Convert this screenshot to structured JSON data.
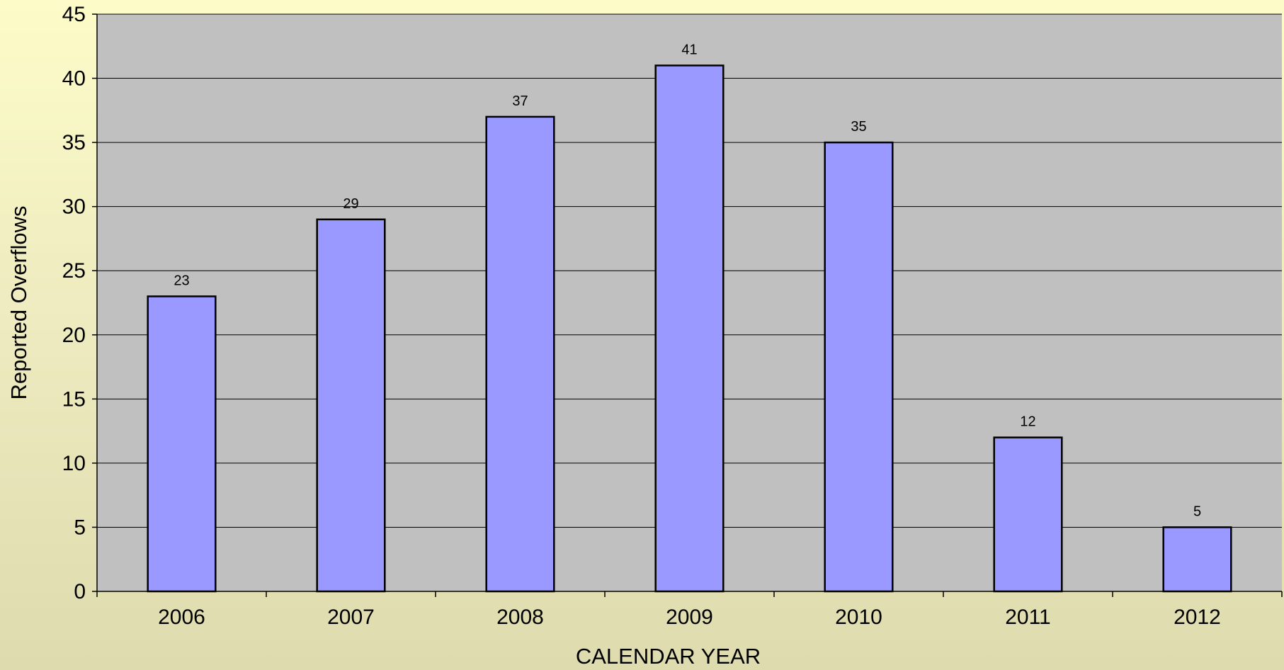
{
  "chart_data": {
    "type": "bar",
    "title": "",
    "xlabel": "CALENDAR YEAR",
    "ylabel": "Reported Overflows",
    "categories": [
      "2006",
      "2007",
      "2008",
      "2009",
      "2010",
      "2011",
      "2012"
    ],
    "values": [
      23,
      29,
      37,
      41,
      35,
      12,
      5
    ],
    "ylim": [
      0,
      45
    ],
    "yticks": [
      0,
      5,
      10,
      15,
      20,
      25,
      30,
      35,
      40,
      45
    ],
    "grid": true,
    "legend": "none",
    "colors": {
      "bar_fill": "#9999ff",
      "bar_stroke": "#000000",
      "plot_background": "#c0c0c0",
      "gridline": "#000000"
    }
  }
}
